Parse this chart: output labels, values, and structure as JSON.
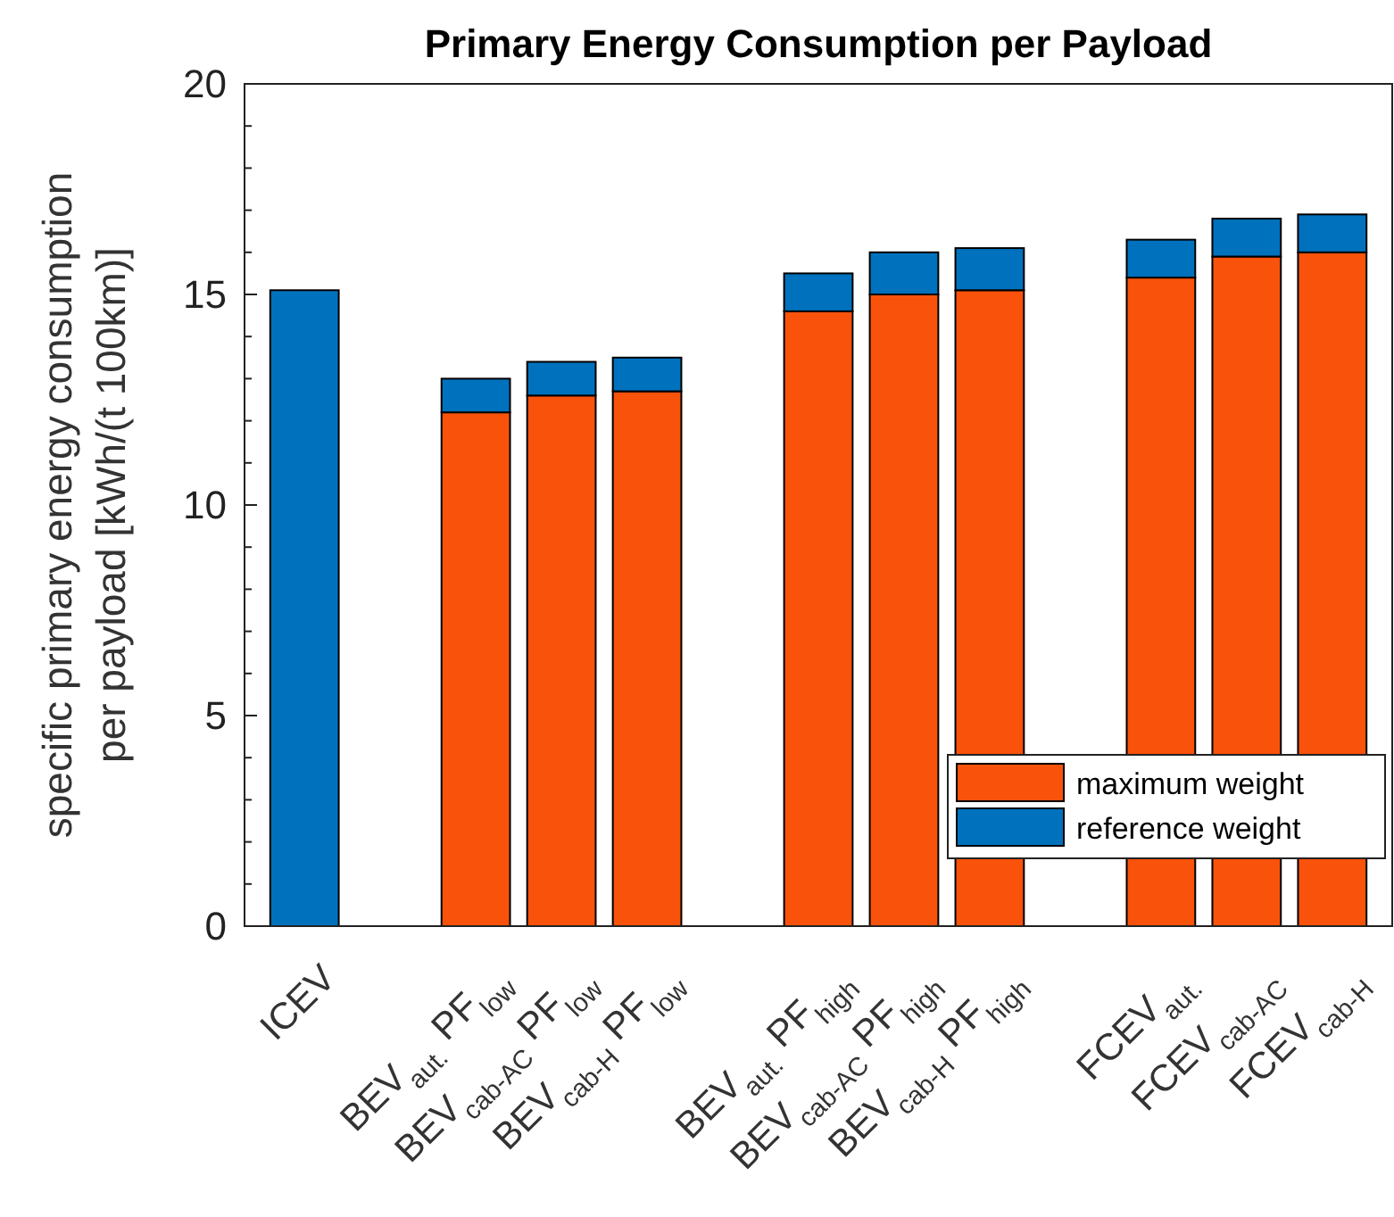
{
  "chart_data": {
    "type": "bar",
    "title": "Primary Energy Consumption per Payload",
    "ylabel": "specific primary energy consumption\nper payload [kWh/(t 100km)]",
    "categories": [
      "ICEV",
      null,
      "BEV$_{aut.}$ PF$_{low}$",
      "BEV$_{cab-AC}$ PF$_{low}$",
      "BEV$_{cab-H}$ PF$_{low}$",
      null,
      "BEV$_{aut.}$ PF$_{high}$",
      "BEV$_{cab-AC}$ PF$_{high}$",
      "BEV$_{cab-H}$ PF$_{high}$",
      null,
      "FCEV$_{aut.}$",
      "FCEV$_{cab-AC}$",
      "FCEV$_{cab-H}$"
    ],
    "stacked": true,
    "series": [
      {
        "name": "maximum weight",
        "color": "#f9520a",
        "values": [
          0,
          0,
          12.2,
          12.6,
          12.7,
          0,
          14.6,
          15.0,
          15.1,
          0,
          15.4,
          15.9,
          16.0
        ]
      },
      {
        "name": "reference weight",
        "color": "#0072bd",
        "values": [
          15.1,
          0,
          0.8,
          0.8,
          0.8,
          0,
          0.9,
          1.0,
          1.0,
          0,
          0.9,
          0.9,
          0.9
        ]
      }
    ],
    "ylim": [
      0,
      20
    ],
    "yticks": [
      0,
      {
        "value": 1,
        "label": null
      },
      {
        "value": 2,
        "label": null
      },
      {
        "value": 3,
        "label": null
      },
      {
        "value": 4,
        "label": null
      },
      5,
      {
        "value": 6,
        "label": null
      },
      {
        "value": 7,
        "label": null
      },
      {
        "value": 8,
        "label": null
      },
      {
        "value": 9,
        "label": null
      },
      10,
      {
        "value": 11,
        "label": null
      },
      {
        "value": 12,
        "label": null
      },
      {
        "value": 13,
        "label": null
      },
      {
        "value": 14,
        "label": null
      },
      15,
      {
        "value": 16,
        "label": null
      },
      {
        "value": 17,
        "label": null
      },
      {
        "value": 18,
        "label": null
      },
      {
        "value": 19,
        "label": null
      },
      20
    ],
    "legend": "bottom right",
    "grid": false
  }
}
